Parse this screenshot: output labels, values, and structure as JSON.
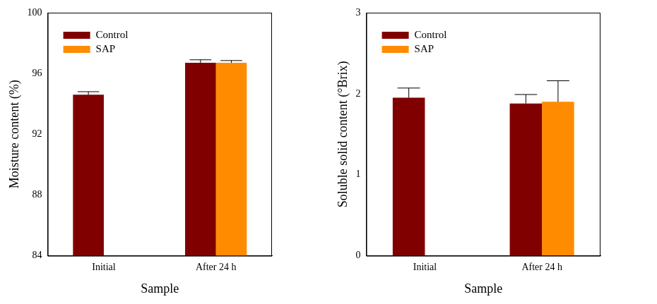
{
  "chart_data": [
    {
      "type": "bar",
      "x_label": "Sample",
      "y_label": "Moisture content (%)",
      "categories": [
        "Initial",
        "After 24 h"
      ],
      "series": [
        {
          "name": "Control",
          "color": "#800000",
          "values": [
            94.6,
            96.7
          ],
          "errors": [
            0.2,
            0.2
          ]
        },
        {
          "name": "SAP",
          "color": "#ff8c00",
          "values": [
            null,
            96.7
          ],
          "errors": [
            null,
            0.15
          ]
        }
      ],
      "ylim": [
        84,
        100
      ],
      "yticks": [
        84,
        88,
        92,
        96,
        100
      ],
      "grid": false,
      "legend": "upper left"
    },
    {
      "type": "bar",
      "x_label": "Sample",
      "y_label": "Soluble solid content (°Brix)",
      "categories": [
        "Initial",
        "After 24 h"
      ],
      "series": [
        {
          "name": "Control",
          "color": "#800000",
          "values": [
            1.95,
            1.88
          ],
          "errors": [
            0.12,
            0.11
          ]
        },
        {
          "name": "SAP",
          "color": "#ff8c00",
          "values": [
            null,
            1.9
          ],
          "errors": [
            null,
            0.26
          ]
        }
      ],
      "ylim": [
        0,
        3
      ],
      "yticks": [
        0,
        1,
        2,
        3
      ],
      "grid": false,
      "legend": "upper left"
    }
  ]
}
